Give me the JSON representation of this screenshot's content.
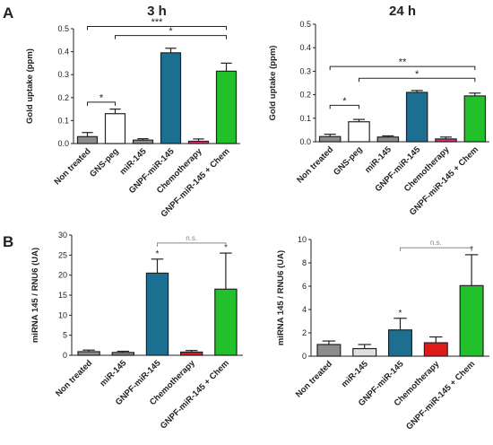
{
  "panel_labels": [
    "A",
    "B"
  ],
  "chart_data": [
    {
      "id": "a1",
      "type": "bar",
      "title": "3 h",
      "ylabel": "Gold uptake (ppm)",
      "ylim": [
        0,
        0.5
      ],
      "yticks": [
        0.0,
        0.1,
        0.2,
        0.3,
        0.4,
        0.5
      ],
      "ytick_labels": [
        "0.0",
        "0.1",
        "0.2",
        "0.3",
        "0.4",
        "0.5"
      ],
      "categories": [
        "Non treated",
        "GNS-peg",
        "miR-145",
        "GNPF-miR-145",
        "Chemotherapy",
        "GNPF-miR-145 + Chem"
      ],
      "values": [
        0.03,
        0.13,
        0.015,
        0.395,
        0.01,
        0.315
      ],
      "errors": [
        0.018,
        0.02,
        0.006,
        0.02,
        0.01,
        0.035
      ],
      "colors": [
        "#8c8c8c",
        "#ffffff",
        "#8c8c8c",
        "#1d6f92",
        "#d5307a",
        "#22c02a"
      ],
      "bar_labels": [
        "",
        "",
        "",
        "",
        "",
        ""
      ],
      "brackets": [
        {
          "from": 0,
          "to": 1,
          "level": 0.18,
          "label": "*"
        },
        {
          "from": 0,
          "to": 5,
          "level": 0.51,
          "label": "***"
        },
        {
          "from": 1,
          "to": 5,
          "level": 0.47,
          "label": "*"
        }
      ]
    },
    {
      "id": "a2",
      "type": "bar",
      "title": "24 h",
      "ylabel": "Gold uptake (ppm)",
      "ylim": [
        0,
        0.5
      ],
      "yticks": [
        0.0,
        0.1,
        0.2,
        0.3,
        0.4,
        0.5
      ],
      "ytick_labels": [
        "0.0",
        "0.1",
        "0.2",
        "0.3",
        "0.4",
        "0.5"
      ],
      "categories": [
        "Non treated",
        "GNS-peg",
        "miR-145",
        "GNPF-miR-145",
        "Chemotherapy",
        "GNPF-miR-145 + Chem"
      ],
      "values": [
        0.022,
        0.085,
        0.02,
        0.21,
        0.012,
        0.195
      ],
      "errors": [
        0.01,
        0.01,
        0.005,
        0.008,
        0.008,
        0.012
      ],
      "colors": [
        "#8c8c8c",
        "#ffffff",
        "#8c8c8c",
        "#1d6f92",
        "#d5307a",
        "#22c02a"
      ],
      "bar_labels": [
        "",
        "",
        "",
        "",
        "",
        ""
      ],
      "brackets": [
        {
          "from": 0,
          "to": 1,
          "level": 0.155,
          "label": "*"
        },
        {
          "from": 0,
          "to": 5,
          "level": 0.32,
          "label": "**"
        },
        {
          "from": 1,
          "to": 5,
          "level": 0.27,
          "label": "*"
        }
      ]
    },
    {
      "id": "b1",
      "type": "bar",
      "title": "",
      "ylabel": "miRNA 145 / RNU6 (UA)",
      "ylim": [
        0,
        30
      ],
      "yticks": [
        0,
        5,
        10,
        15,
        20,
        25,
        30
      ],
      "ytick_labels": [
        "0",
        "5",
        "10",
        "15",
        "20",
        "25",
        "30"
      ],
      "categories": [
        "Non treated",
        "miR-145",
        "GNPF-miR-145",
        "Chemotherapy",
        "GNPF-miR-145 + Chem"
      ],
      "values": [
        0.9,
        0.7,
        20.5,
        0.8,
        16.5
      ],
      "errors": [
        0.4,
        0.3,
        3.5,
        0.4,
        9.0
      ],
      "colors": [
        "#8c8c8c",
        "#8c8c8c",
        "#1d6f92",
        "#e0191b",
        "#22c02a"
      ],
      "bar_labels": [
        "",
        "",
        "*",
        "",
        "*"
      ],
      "brackets": [
        {
          "from": 2,
          "to": 4,
          "level": 28.0,
          "label": "n.s."
        }
      ]
    },
    {
      "id": "b2",
      "type": "bar",
      "title": "",
      "ylabel": "miRNA 145 / RNU6 (UA)",
      "ylim": [
        0,
        10
      ],
      "yticks": [
        0,
        2,
        4,
        6,
        8,
        10
      ],
      "ytick_labels": [
        "0",
        "2",
        "4",
        "6",
        "8",
        "10"
      ],
      "categories": [
        "Non treated",
        "miR-145",
        "GNPF-miR-145",
        "Chemotherapy",
        "GNPF-miR-145 + Chem"
      ],
      "values": [
        1.0,
        0.65,
        2.25,
        1.15,
        6.05
      ],
      "errors": [
        0.3,
        0.35,
        1.0,
        0.5,
        2.65
      ],
      "colors": [
        "#8c8c8c",
        "#e0e0e0",
        "#1d6f92",
        "#e0191b",
        "#22c02a"
      ],
      "bar_labels": [
        "",
        "",
        "*",
        "",
        "*"
      ],
      "brackets": [
        {
          "from": 2,
          "to": 4,
          "level": 9.3,
          "label": "n.s."
        }
      ]
    }
  ]
}
